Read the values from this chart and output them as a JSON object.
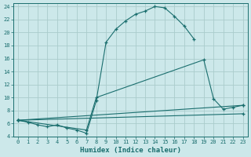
{
  "xlabel": "Humidex (Indice chaleur)",
  "bg_color": "#cce8ea",
  "grid_color": "#aacccc",
  "line_color": "#1a6e6e",
  "xlim": [
    -0.5,
    23.5
  ],
  "ylim": [
    4,
    24.5
  ],
  "xticks": [
    0,
    1,
    2,
    3,
    4,
    5,
    6,
    7,
    8,
    9,
    10,
    11,
    12,
    13,
    14,
    15,
    16,
    17,
    18,
    19,
    20,
    21,
    22,
    23
  ],
  "yticks": [
    4,
    6,
    8,
    10,
    12,
    14,
    16,
    18,
    20,
    22,
    24
  ],
  "line1_x": [
    0,
    1,
    2,
    3,
    4,
    5,
    6,
    7,
    8,
    9,
    10,
    11,
    12,
    13,
    14,
    15,
    16,
    17,
    18
  ],
  "line1_y": [
    6.5,
    6.2,
    5.8,
    5.5,
    5.8,
    5.3,
    5.0,
    4.5,
    9.5,
    18.5,
    20.5,
    21.8,
    22.8,
    23.3,
    24.0,
    23.8,
    22.5,
    21.0,
    19.0
  ],
  "line2_x": [
    0,
    7,
    8,
    19,
    20,
    21,
    22,
    23
  ],
  "line2_y": [
    6.5,
    5.0,
    10.0,
    15.8,
    9.8,
    8.2,
    8.5,
    8.8
  ],
  "line3_x": [
    0,
    23
  ],
  "line3_y": [
    6.5,
    8.8
  ],
  "line4_x": [
    0,
    23
  ],
  "line4_y": [
    6.5,
    7.5
  ]
}
